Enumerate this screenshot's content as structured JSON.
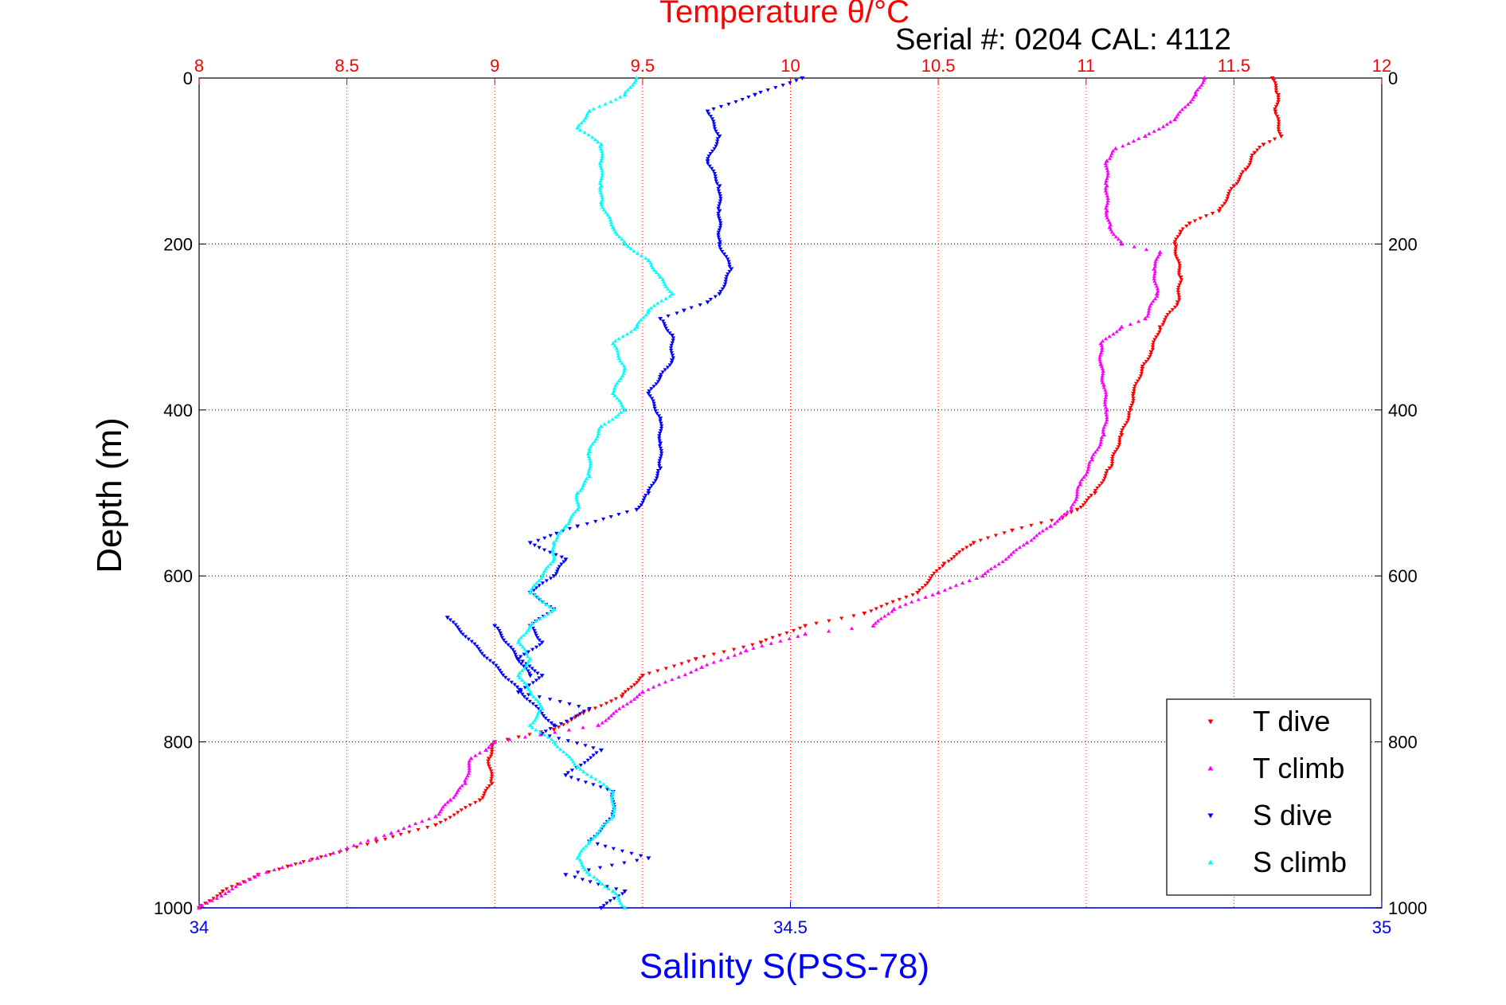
{
  "header": {
    "serial": "Serial #: 0204  CAL: 4112"
  },
  "chart_data": {
    "type": "scatter",
    "title": "Temperature θ/°C",
    "xlabel": "Salinity S(PSS-78)",
    "ylabel": "Depth (m)",
    "x_top": {
      "label": "Temperature θ/°C",
      "lim": [
        8,
        12
      ],
      "ticks": [
        "8",
        "8.5",
        "9",
        "9.5",
        "10",
        "10.5",
        "11",
        "11.5",
        "12"
      ],
      "color": "#ff0000",
      "grid": true
    },
    "x_bottom": {
      "label": "Salinity S(PSS-78)",
      "lim": [
        34,
        35
      ],
      "ticks": [
        "34",
        "34.5",
        "35"
      ],
      "color": "#0000ff"
    },
    "y": {
      "lim": [
        0,
        1000
      ],
      "reversed": true,
      "ticks": [
        "0",
        "200",
        "400",
        "600",
        "800",
        "1000"
      ],
      "grid": true
    },
    "legend": {
      "position": "bottom-right"
    },
    "series": [
      {
        "name": "T dive",
        "axis": "top",
        "color": "#ff0000",
        "marker": "triangle-down",
        "points": [
          [
            11.63,
            0
          ],
          [
            11.65,
            20
          ],
          [
            11.64,
            40
          ],
          [
            11.66,
            70
          ],
          [
            11.6,
            80
          ],
          [
            11.57,
            90
          ],
          [
            11.54,
            110
          ],
          [
            11.5,
            130
          ],
          [
            11.45,
            160
          ],
          [
            11.35,
            175
          ],
          [
            11.32,
            185
          ],
          [
            11.3,
            200
          ],
          [
            11.32,
            240
          ],
          [
            11.31,
            270
          ],
          [
            11.25,
            300
          ],
          [
            11.22,
            330
          ],
          [
            11.19,
            350
          ],
          [
            11.16,
            380
          ],
          [
            11.15,
            400
          ],
          [
            11.12,
            430
          ],
          [
            11.08,
            470
          ],
          [
            11.03,
            500
          ],
          [
            10.97,
            520
          ],
          [
            10.92,
            530
          ],
          [
            10.75,
            545
          ],
          [
            10.62,
            560
          ],
          [
            10.52,
            585
          ],
          [
            10.43,
            620
          ],
          [
            10.25,
            645
          ],
          [
            10.05,
            660
          ],
          [
            9.9,
            680
          ],
          [
            9.68,
            700
          ],
          [
            9.5,
            720
          ],
          [
            9.43,
            745
          ],
          [
            9.3,
            765
          ],
          [
            9.2,
            785
          ],
          [
            9.0,
            800
          ],
          [
            8.98,
            820
          ],
          [
            8.99,
            850
          ],
          [
            8.95,
            870
          ],
          [
            8.8,
            900
          ],
          [
            8.6,
            920
          ],
          [
            8.5,
            930
          ],
          [
            8.3,
            950
          ],
          [
            8.2,
            960
          ],
          [
            8.08,
            980
          ],
          [
            8.0,
            1000
          ]
        ]
      },
      {
        "name": "T climb",
        "axis": "top",
        "color": "#ff00ff",
        "marker": "triangle-up",
        "points": [
          [
            11.4,
            0
          ],
          [
            11.37,
            20
          ],
          [
            11.3,
            50
          ],
          [
            11.2,
            70
          ],
          [
            11.1,
            85
          ],
          [
            11.07,
            100
          ],
          [
            11.07,
            130
          ],
          [
            11.07,
            160
          ],
          [
            11.08,
            180
          ],
          [
            11.12,
            200
          ],
          [
            11.25,
            210
          ],
          [
            11.23,
            230
          ],
          [
            11.24,
            260
          ],
          [
            11.2,
            290
          ],
          [
            11.12,
            300
          ],
          [
            11.05,
            320
          ],
          [
            11.05,
            345
          ],
          [
            11.06,
            370
          ],
          [
            11.07,
            400
          ],
          [
            11.06,
            430
          ],
          [
            11.02,
            460
          ],
          [
            10.98,
            490
          ],
          [
            10.95,
            520
          ],
          [
            10.88,
            540
          ],
          [
            10.8,
            560
          ],
          [
            10.65,
            600
          ],
          [
            10.5,
            620
          ],
          [
            10.35,
            640
          ],
          [
            10.28,
            660
          ],
          [
            10.05,
            670
          ],
          [
            9.85,
            690
          ],
          [
            9.7,
            710
          ],
          [
            9.5,
            740
          ],
          [
            9.35,
            780
          ],
          [
            9.0,
            800
          ],
          [
            8.97,
            810
          ],
          [
            8.92,
            820
          ],
          [
            8.9,
            850
          ],
          [
            8.85,
            870
          ],
          [
            8.8,
            890
          ],
          [
            8.65,
            910
          ],
          [
            8.4,
            940
          ],
          [
            8.2,
            960
          ],
          [
            8.0,
            1000
          ]
        ]
      },
      {
        "name": "S dive",
        "axis": "bottom",
        "color": "#0000ff",
        "marker": "triangle-down",
        "points": [
          [
            34.51,
            0
          ],
          [
            34.47,
            20
          ],
          [
            34.43,
            40
          ],
          [
            34.44,
            70
          ],
          [
            34.43,
            100
          ],
          [
            34.44,
            130
          ],
          [
            34.44,
            160
          ],
          [
            34.44,
            200
          ],
          [
            34.45,
            230
          ],
          [
            34.44,
            260
          ],
          [
            34.43,
            270
          ],
          [
            34.41,
            280
          ],
          [
            34.39,
            290
          ],
          [
            34.4,
            310
          ],
          [
            34.4,
            340
          ],
          [
            34.39,
            360
          ],
          [
            34.38,
            380
          ],
          [
            34.39,
            410
          ],
          [
            34.39,
            440
          ],
          [
            34.39,
            470
          ],
          [
            34.38,
            500
          ],
          [
            34.37,
            520
          ],
          [
            34.32,
            540
          ],
          [
            34.28,
            560
          ],
          [
            34.31,
            580
          ],
          [
            34.3,
            600
          ],
          [
            34.28,
            620
          ],
          [
            34.3,
            640
          ],
          [
            34.28,
            660
          ],
          [
            34.29,
            680
          ],
          [
            34.27,
            700
          ],
          [
            34.29,
            720
          ],
          [
            34.27,
            740
          ],
          [
            34.33,
            760
          ],
          [
            34.29,
            790
          ],
          [
            34.34,
            810
          ],
          [
            34.31,
            840
          ],
          [
            34.35,
            860
          ],
          [
            34.35,
            890
          ],
          [
            34.33,
            920
          ],
          [
            34.38,
            940
          ],
          [
            34.31,
            960
          ],
          [
            34.36,
            980
          ],
          [
            34.34,
            1000
          ],
          [
            34.25,
            660
          ],
          [
            34.28,
            720
          ],
          [
            34.21,
            650
          ],
          [
            34.3,
            780
          ]
        ]
      },
      {
        "name": "S climb",
        "axis": "bottom",
        "color": "#00ffff",
        "marker": "triangle-up",
        "points": [
          [
            34.37,
            0
          ],
          [
            34.36,
            20
          ],
          [
            34.33,
            40
          ],
          [
            34.32,
            60
          ],
          [
            34.34,
            80
          ],
          [
            34.34,
            100
          ],
          [
            34.34,
            130
          ],
          [
            34.34,
            150
          ],
          [
            34.35,
            180
          ],
          [
            34.36,
            200
          ],
          [
            34.38,
            220
          ],
          [
            34.39,
            240
          ],
          [
            34.4,
            260
          ],
          [
            34.38,
            280
          ],
          [
            34.37,
            300
          ],
          [
            34.35,
            320
          ],
          [
            34.36,
            350
          ],
          [
            34.35,
            380
          ],
          [
            34.36,
            400
          ],
          [
            34.34,
            420
          ],
          [
            34.33,
            450
          ],
          [
            34.33,
            480
          ],
          [
            34.32,
            500
          ],
          [
            34.32,
            520
          ],
          [
            34.31,
            540
          ],
          [
            34.3,
            560
          ],
          [
            34.3,
            580
          ],
          [
            34.29,
            600
          ],
          [
            34.28,
            620
          ],
          [
            34.3,
            640
          ],
          [
            34.28,
            660
          ],
          [
            34.27,
            680
          ],
          [
            34.28,
            700
          ],
          [
            34.27,
            720
          ],
          [
            34.28,
            740
          ],
          [
            34.29,
            760
          ],
          [
            34.28,
            780
          ],
          [
            34.3,
            800
          ],
          [
            34.32,
            830
          ],
          [
            34.35,
            860
          ],
          [
            34.35,
            890
          ],
          [
            34.33,
            920
          ],
          [
            34.32,
            940
          ],
          [
            34.33,
            960
          ],
          [
            34.35,
            980
          ],
          [
            34.36,
            1000
          ]
        ]
      }
    ]
  }
}
